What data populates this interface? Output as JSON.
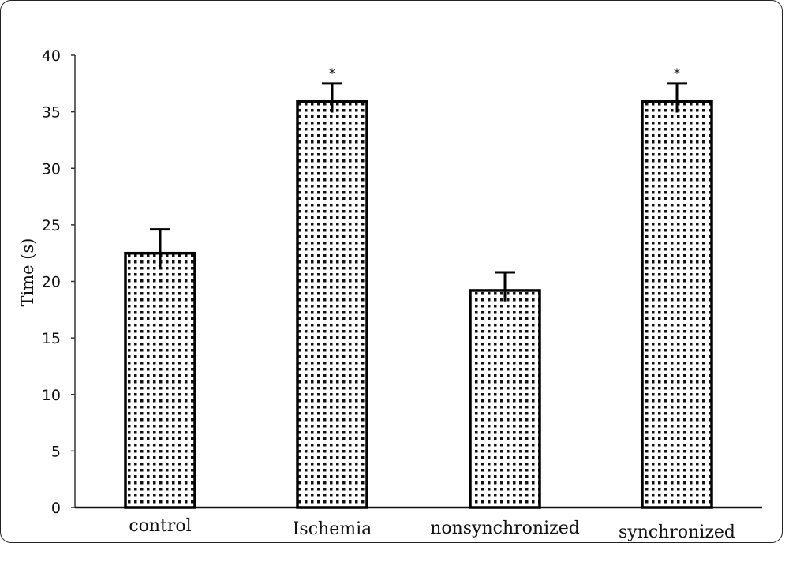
{
  "chart_data": {
    "type": "bar",
    "title": "",
    "xlabel": "",
    "ylabel": "Time (s)",
    "ylim": [
      0,
      40
    ],
    "yticks": [
      0,
      5,
      10,
      15,
      20,
      25,
      30,
      35,
      40
    ],
    "categories": [
      "control",
      "Ischemia",
      "nonsynchronized",
      "synchronized"
    ],
    "values": [
      22.5,
      35.9,
      19.2,
      35.9
    ],
    "errors": [
      2.1,
      1.6,
      1.6,
      1.6
    ],
    "annotations": [
      "",
      "*",
      "",
      "*"
    ],
    "grid": false,
    "legend": "none",
    "colors": {
      "bar_fill": "#ffffff",
      "bar_pattern": "#111111",
      "bar_edge": "#000000"
    }
  }
}
